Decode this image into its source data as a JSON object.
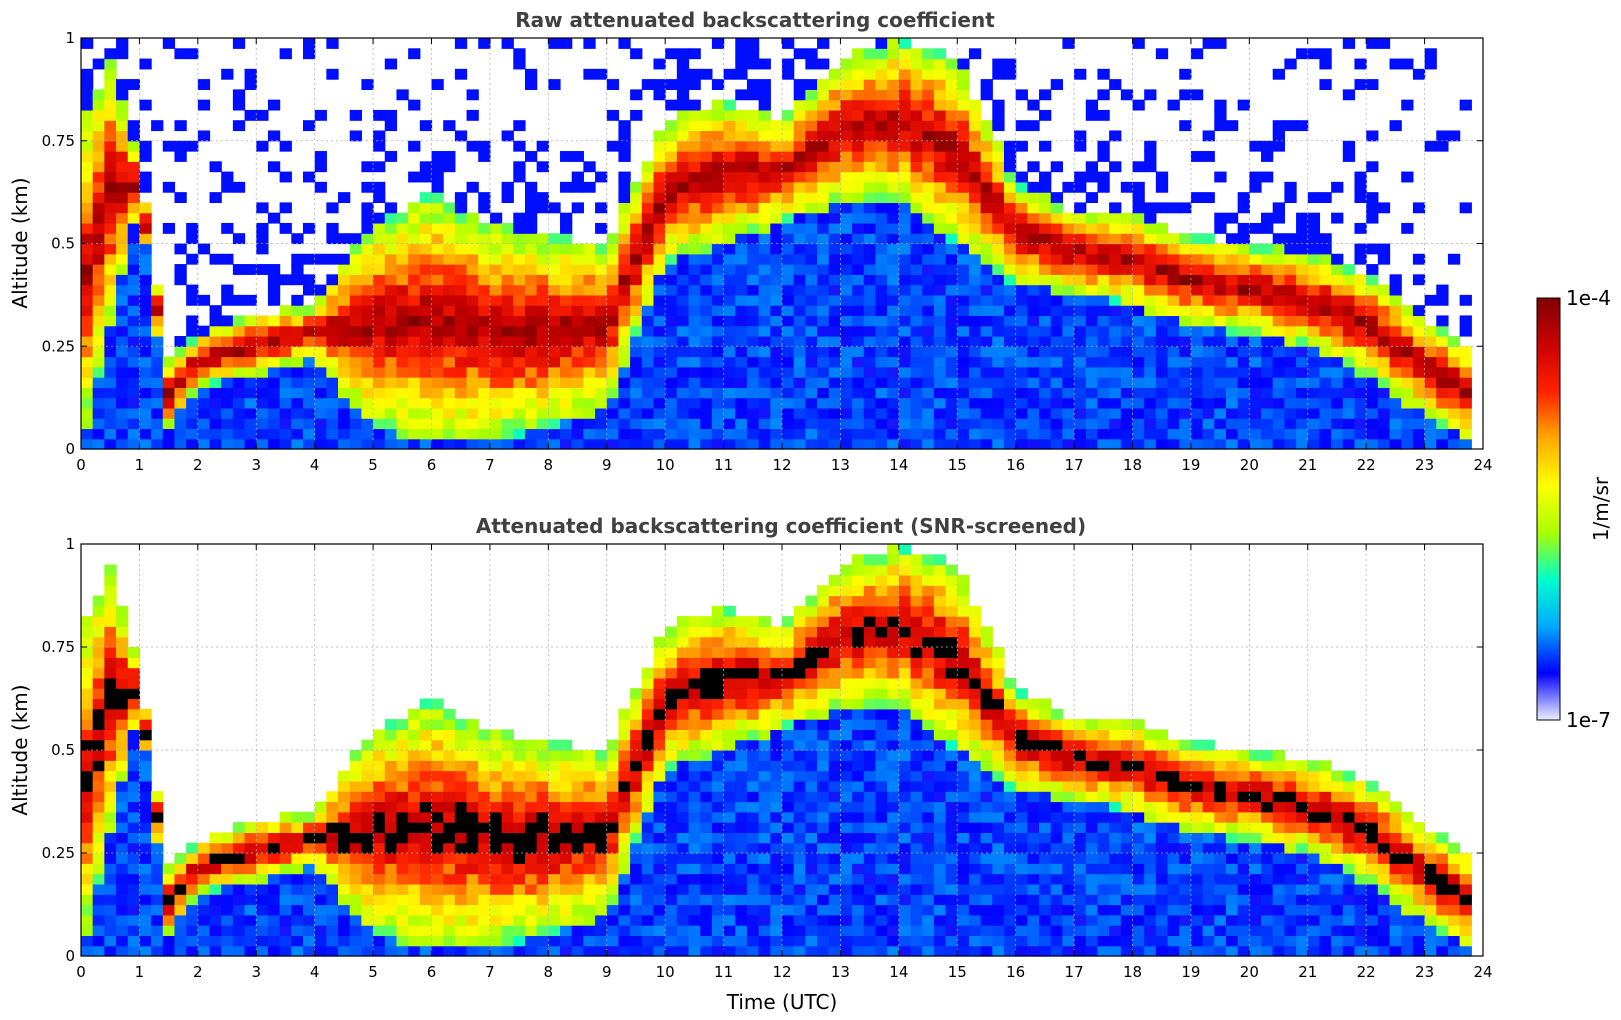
{
  "chart_data": [
    {
      "type": "heatmap",
      "title": "Raw attenuated backscattering coefficient",
      "xlabel": "",
      "ylabel": "Altitude (km)",
      "xlim": [
        0,
        24
      ],
      "ylim": [
        0,
        1
      ],
      "xticks": [
        "0",
        "1",
        "2",
        "3",
        "4",
        "5",
        "6",
        "7",
        "8",
        "9",
        "10",
        "11",
        "12",
        "13",
        "14",
        "15",
        "16",
        "17",
        "18",
        "19",
        "20",
        "21",
        "22",
        "23",
        "24"
      ],
      "yticks": [
        "0",
        "0.25",
        "0.5",
        "0.75",
        "1"
      ],
      "grid": true,
      "screened": false,
      "features": {
        "cloud_top_km": [
          [
            0.0,
            0.78
          ],
          [
            0.5,
            0.95
          ],
          [
            1.0,
            0.7
          ],
          [
            1.5,
            0.22
          ],
          [
            2.0,
            0.28
          ],
          [
            3.0,
            0.33
          ],
          [
            4.0,
            0.35
          ],
          [
            5.0,
            0.55
          ],
          [
            6.0,
            0.62
          ],
          [
            7.0,
            0.55
          ],
          [
            8.0,
            0.52
          ],
          [
            9.0,
            0.5
          ],
          [
            10.0,
            0.8
          ],
          [
            11.0,
            0.85
          ],
          [
            12.0,
            0.8
          ],
          [
            13.0,
            0.95
          ],
          [
            14.0,
            1.0
          ],
          [
            15.0,
            0.95
          ],
          [
            16.0,
            0.65
          ],
          [
            17.0,
            0.58
          ],
          [
            18.0,
            0.57
          ],
          [
            19.0,
            0.52
          ],
          [
            20.0,
            0.5
          ],
          [
            21.0,
            0.48
          ],
          [
            22.0,
            0.43
          ],
          [
            23.0,
            0.32
          ],
          [
            23.8,
            0.25
          ]
        ],
        "cloud_base_km": [
          [
            0.0,
            0.0
          ],
          [
            0.5,
            0.3
          ],
          [
            1.0,
            0.6
          ],
          [
            1.5,
            0.05
          ],
          [
            2.0,
            0.15
          ],
          [
            3.0,
            0.18
          ],
          [
            4.0,
            0.22
          ],
          [
            5.0,
            0.05
          ],
          [
            6.0,
            0.02
          ],
          [
            7.0,
            0.02
          ],
          [
            8.0,
            0.05
          ],
          [
            9.0,
            0.1
          ],
          [
            10.0,
            0.45
          ],
          [
            11.0,
            0.5
          ],
          [
            12.0,
            0.55
          ],
          [
            13.0,
            0.6
          ],
          [
            14.0,
            0.6
          ],
          [
            15.0,
            0.5
          ],
          [
            16.0,
            0.4
          ],
          [
            17.0,
            0.38
          ],
          [
            18.0,
            0.35
          ],
          [
            19.0,
            0.3
          ],
          [
            20.0,
            0.28
          ],
          [
            21.0,
            0.25
          ],
          [
            22.0,
            0.18
          ],
          [
            23.0,
            0.08
          ],
          [
            23.8,
            0.02
          ]
        ],
        "data_end_hour": 23.8
      }
    },
    {
      "type": "heatmap",
      "title": "Attenuated backscattering coefficient (SNR-screened)",
      "xlabel": "Time (UTC)",
      "ylabel": "Altitude (km)",
      "xlim": [
        0,
        24
      ],
      "ylim": [
        0,
        1
      ],
      "xticks": [
        "0",
        "1",
        "2",
        "3",
        "4",
        "5",
        "6",
        "7",
        "8",
        "9",
        "10",
        "11",
        "12",
        "13",
        "14",
        "15",
        "16",
        "17",
        "18",
        "19",
        "20",
        "21",
        "22",
        "23",
        "24"
      ],
      "yticks": [
        "0",
        "0.25",
        "0.5",
        "0.75",
        "1"
      ],
      "grid": true,
      "screened": true,
      "saturated_color": "#000000"
    }
  ],
  "colorbar": {
    "label": "1/m/sr",
    "max_label": "1e-4",
    "min_label": "1e-7",
    "vmin": 1e-07,
    "vmax": 0.0001,
    "scale": "log",
    "colormap": [
      "#eeeeff",
      "#0000ff",
      "#00aaff",
      "#00ffcc",
      "#aaff00",
      "#ffff00",
      "#ffaa00",
      "#ff2200",
      "#cc0000",
      "#800000"
    ]
  }
}
